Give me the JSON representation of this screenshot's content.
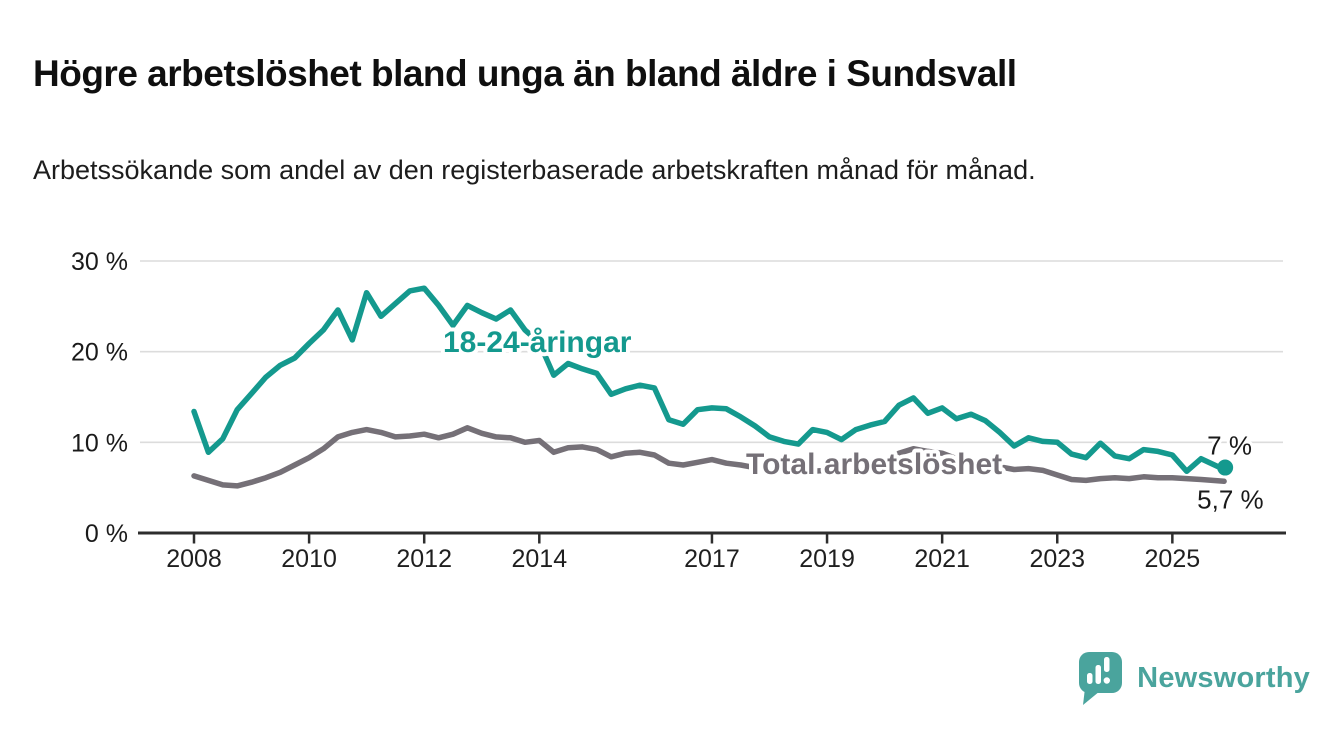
{
  "header": {
    "title": "Högre arbetslöshet bland unga än bland äldre i Sundsvall",
    "subtitle": "Arbetssökande som andel av den registerbaserade arbetskraften månad för månad."
  },
  "branding": {
    "logo_text": "Newsworthy",
    "logo_color": "#4aa49d",
    "logo_icon": "bar-chart-speech-bubble-icon"
  },
  "chart_data": {
    "type": "line",
    "title": "Högre arbetslöshet bland unga än bland äldre i Sundsvall",
    "xlabel": "",
    "ylabel": "",
    "grid": true,
    "legend": "inline-labels",
    "ylim": [
      0,
      30
    ],
    "xlim": [
      2008,
      2026
    ],
    "y_ticks": [
      {
        "value": 0,
        "label": "0 %"
      },
      {
        "value": 10,
        "label": "10 %"
      },
      {
        "value": 20,
        "label": "20 %"
      },
      {
        "value": 30,
        "label": "30 %"
      }
    ],
    "x_ticks": [
      {
        "value": 2008,
        "label": "2008"
      },
      {
        "value": 2010,
        "label": "2010"
      },
      {
        "value": 2012,
        "label": "2012"
      },
      {
        "value": 2014,
        "label": "2014"
      },
      {
        "value": 2017,
        "label": "2017"
      },
      {
        "value": 2019,
        "label": "2019"
      },
      {
        "value": 2021,
        "label": "2021"
      },
      {
        "value": 2023,
        "label": "2023"
      },
      {
        "value": 2025,
        "label": "2025"
      }
    ],
    "x": [
      2008.0,
      2008.25,
      2008.5,
      2008.75,
      2009.0,
      2009.25,
      2009.5,
      2009.75,
      2010.0,
      2010.25,
      2010.5,
      2010.75,
      2011.0,
      2011.25,
      2011.5,
      2011.75,
      2012.0,
      2012.25,
      2012.5,
      2012.75,
      2013.0,
      2013.25,
      2013.5,
      2013.75,
      2014.0,
      2014.25,
      2014.5,
      2014.75,
      2015.0,
      2015.25,
      2015.5,
      2015.75,
      2016.0,
      2016.25,
      2016.5,
      2016.75,
      2017.0,
      2017.25,
      2017.5,
      2017.75,
      2018.0,
      2018.25,
      2018.5,
      2018.75,
      2019.0,
      2019.25,
      2019.5,
      2019.75,
      2020.0,
      2020.25,
      2020.5,
      2020.75,
      2021.0,
      2021.25,
      2021.5,
      2021.75,
      2022.0,
      2022.25,
      2022.5,
      2022.75,
      2023.0,
      2023.25,
      2023.5,
      2023.75,
      2024.0,
      2024.25,
      2024.5,
      2024.75,
      2025.0,
      2025.25,
      2025.5,
      2025.9
    ],
    "series": [
      {
        "name": "18-24-åringar",
        "color": "#14998e",
        "end_label": "7 %",
        "end_dot": true,
        "values": [
          13.4,
          8.9,
          10.4,
          13.6,
          15.4,
          17.2,
          18.5,
          19.3,
          20.9,
          22.4,
          24.6,
          21.3,
          26.5,
          23.9,
          25.3,
          26.7,
          27.0,
          25.1,
          22.9,
          25.1,
          24.3,
          23.6,
          24.6,
          22.4,
          21.0,
          17.4,
          18.7,
          18.1,
          17.6,
          15.3,
          15.9,
          16.3,
          16.0,
          12.5,
          12.0,
          13.6,
          13.8,
          13.7,
          12.8,
          11.8,
          10.6,
          10.1,
          9.8,
          11.4,
          11.1,
          10.3,
          11.4,
          11.9,
          12.3,
          14.1,
          14.9,
          13.2,
          13.8,
          12.6,
          13.1,
          12.4,
          11.1,
          9.6,
          10.5,
          10.1,
          10.0,
          8.7,
          8.3,
          9.9,
          8.5,
          8.2,
          9.2,
          9.0,
          8.6,
          6.8,
          8.2,
          7.0
        ]
      },
      {
        "name": "Total arbetslöshet",
        "color": "#757077",
        "end_label": "5,7 %",
        "end_dot": false,
        "values": [
          6.3,
          5.8,
          5.3,
          5.2,
          5.6,
          6.1,
          6.7,
          7.5,
          8.3,
          9.3,
          10.6,
          11.1,
          11.4,
          11.1,
          10.6,
          10.7,
          10.9,
          10.5,
          10.9,
          11.6,
          11.0,
          10.6,
          10.5,
          10.0,
          10.2,
          8.9,
          9.4,
          9.5,
          9.2,
          8.4,
          8.8,
          8.9,
          8.6,
          7.7,
          7.5,
          7.8,
          8.1,
          7.7,
          7.5,
          7.2,
          7.0,
          6.8,
          6.6,
          6.8,
          6.9,
          6.6,
          6.8,
          7.0,
          7.2,
          8.8,
          9.3,
          9.0,
          8.8,
          8.2,
          7.8,
          7.5,
          7.3,
          7.0,
          7.1,
          6.9,
          6.4,
          5.9,
          5.8,
          6.0,
          6.1,
          6.0,
          6.2,
          6.1,
          6.1,
          6.0,
          5.9,
          5.7
        ]
      }
    ]
  }
}
